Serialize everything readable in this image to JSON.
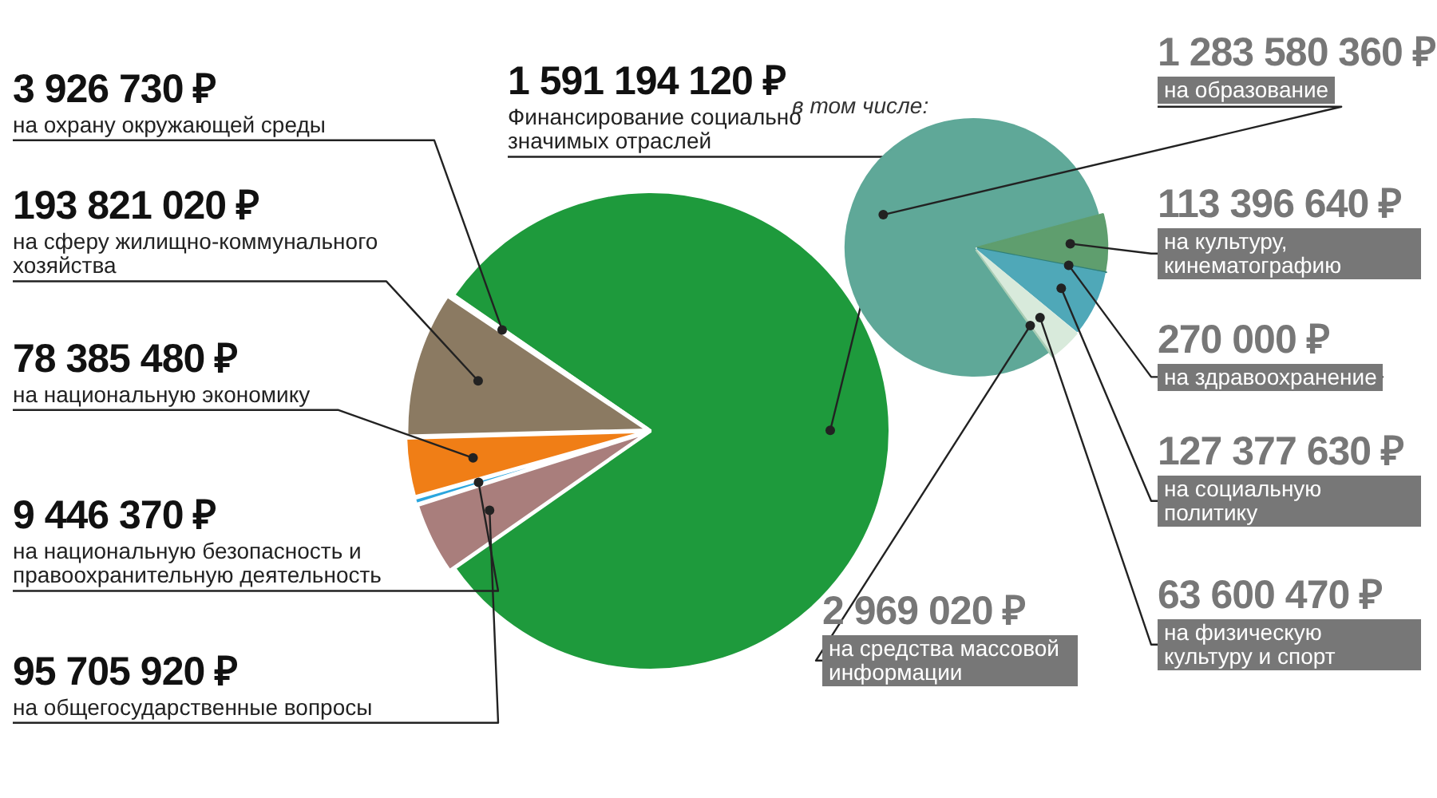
{
  "chart_data": [
    {
      "type": "pie",
      "categories": [
        "Финансирование социально значимых отраслей",
        "на общегосударственные вопросы",
        "на национальную безопасность и правоохранительную деятельность",
        "на национальную экономику",
        "на сферу жилищно-коммунального хозяйства",
        "на охрану окружающей среды"
      ],
      "values": [
        1591194120,
        95705920,
        9446370,
        78385480,
        193821020,
        3926730
      ],
      "colors": [
        "#1e9a3c",
        "#a97e7c",
        "#2ba6de",
        "#f07e16",
        "#8b7a62",
        "#e8e8e8"
      ],
      "value_labels": [
        "1 591 194 120 ₽",
        "95 705 920 ₽",
        "9 446 370 ₽",
        "78 385 480 ₽",
        "193 821 020 ₽",
        "3 926 730 ₽"
      ],
      "annotations": [
        "в том числе:"
      ]
    },
    {
      "type": "pie",
      "categories": [
        "на образование",
        "на культуру, кинематографию",
        "на здравоохранение",
        "на социальную политику",
        "на физическую культуру и спорт",
        "на средства массовой информации"
      ],
      "values": [
        1283580360,
        113396640,
        270000,
        127377630,
        63600470,
        2969020
      ],
      "colors": [
        "#5fa898",
        "#5f9e6e",
        "#2f7f78",
        "#4fa8b8",
        "#d8eadb",
        "#a9cdb5"
      ],
      "value_labels": [
        "1 283 580 360 ₽",
        "113 396 640 ₽",
        "270 000 ₽",
        "127 377 630 ₽",
        "63 600 470 ₽",
        "2 969 020 ₽"
      ]
    }
  ]
}
